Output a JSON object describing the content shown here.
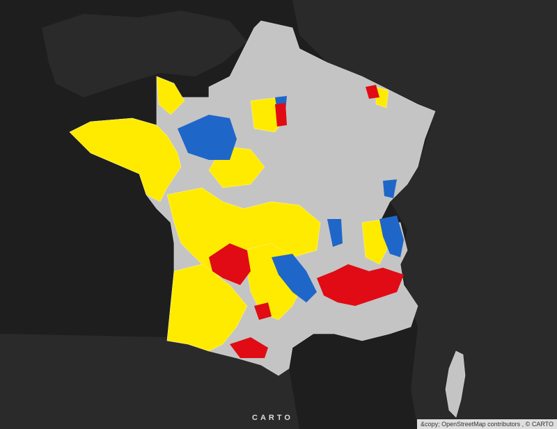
{
  "logo": "CARTO",
  "attribution": "&copy; OpenStreetMap contributors ,  © CARTO"
}
